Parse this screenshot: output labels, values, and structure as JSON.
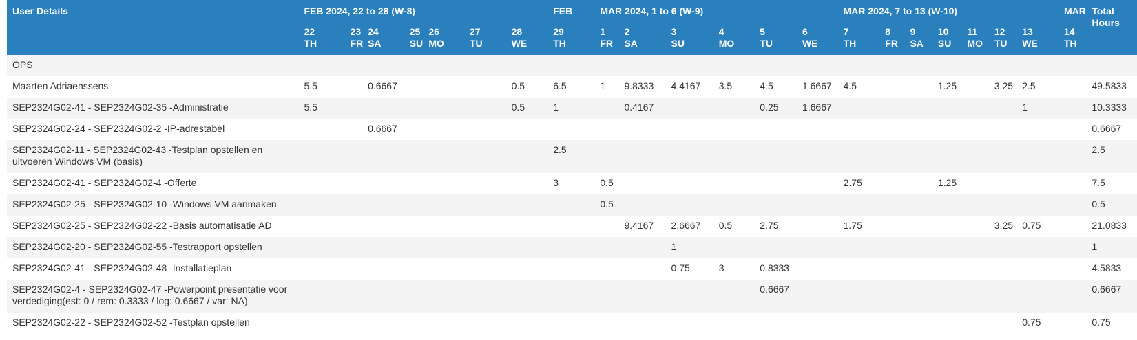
{
  "header": {
    "user_details": "User Details",
    "groups": {
      "w8": "FEB 2024, 22 to 28 (W-8)",
      "feb": "FEB",
      "w9": "MAR 2024, 1 to 6 (W-9)",
      "w10": "MAR 2024, 7 to 13 (W-10)",
      "mar": "MAR"
    },
    "total_line1": "Total",
    "total_line2": "Hours",
    "days": [
      {
        "num": "22",
        "wd": "TH"
      },
      {
        "num": "23",
        "wd": "FR"
      },
      {
        "num": "24",
        "wd": "SA"
      },
      {
        "num": "25",
        "wd": "SU"
      },
      {
        "num": "26",
        "wd": "MO"
      },
      {
        "num": "27",
        "wd": "TU"
      },
      {
        "num": "28",
        "wd": "WE"
      },
      {
        "num": "29",
        "wd": "TH"
      },
      {
        "num": "1",
        "wd": "FR"
      },
      {
        "num": "2",
        "wd": "SA"
      },
      {
        "num": "3",
        "wd": "SU"
      },
      {
        "num": "4",
        "wd": "MO"
      },
      {
        "num": "5",
        "wd": "TU"
      },
      {
        "num": "6",
        "wd": "WE"
      },
      {
        "num": "7",
        "wd": "TH"
      },
      {
        "num": "8",
        "wd": "FR"
      },
      {
        "num": "9",
        "wd": "SA"
      },
      {
        "num": "10",
        "wd": "SU"
      },
      {
        "num": "11",
        "wd": "MO"
      },
      {
        "num": "12",
        "wd": "TU"
      },
      {
        "num": "13",
        "wd": "WE"
      },
      {
        "num": "14",
        "wd": "TH"
      }
    ]
  },
  "rows": [
    {
      "label": "OPS",
      "cells": [
        "",
        "",
        "",
        "",
        "",
        "",
        "",
        "",
        "",
        "",
        "",
        "",
        "",
        "",
        "",
        "",
        "",
        "",
        "",
        "",
        "",
        ""
      ],
      "total": ""
    },
    {
      "label": "Maarten Adriaenssens",
      "cells": [
        "5.5",
        "",
        "0.6667",
        "",
        "",
        "",
        "0.5",
        "6.5",
        "1",
        "9.8333",
        "4.4167",
        "3.5",
        "4.5",
        "1.6667",
        "4.5",
        "",
        "",
        "1.25",
        "",
        "3.25",
        "2.5",
        ""
      ],
      "total": "49.5833"
    },
    {
      "label": "SEP2324G02-41 - SEP2324G02-35 -Administratie",
      "cells": [
        "5.5",
        "",
        "",
        "",
        "",
        "",
        "0.5",
        "1",
        "",
        "0.4167",
        "",
        "",
        "0.25",
        "1.6667",
        "",
        "",
        "",
        "",
        "",
        "",
        "1",
        ""
      ],
      "total": "10.3333"
    },
    {
      "label": "SEP2324G02-24 - SEP2324G02-2 -IP-adrestabel",
      "cells": [
        "",
        "",
        "0.6667",
        "",
        "",
        "",
        "",
        "",
        "",
        "",
        "",
        "",
        "",
        "",
        "",
        "",
        "",
        "",
        "",
        "",
        "",
        ""
      ],
      "total": "0.6667"
    },
    {
      "label": "SEP2324G02-11 - SEP2324G02-43 -Testplan opstellen en uitvoeren Windows VM (basis)",
      "cells": [
        "",
        "",
        "",
        "",
        "",
        "",
        "",
        "2.5",
        "",
        "",
        "",
        "",
        "",
        "",
        "",
        "",
        "",
        "",
        "",
        "",
        "",
        ""
      ],
      "total": "2.5"
    },
    {
      "label": "SEP2324G02-41 - SEP2324G02-4 -Offerte",
      "cells": [
        "",
        "",
        "",
        "",
        "",
        "",
        "",
        "3",
        "0.5",
        "",
        "",
        "",
        "",
        "",
        "2.75",
        "",
        "",
        "1.25",
        "",
        "",
        "",
        ""
      ],
      "total": "7.5"
    },
    {
      "label": "SEP2324G02-25 - SEP2324G02-10 -Windows VM aanmaken",
      "cells": [
        "",
        "",
        "",
        "",
        "",
        "",
        "",
        "",
        "0.5",
        "",
        "",
        "",
        "",
        "",
        "",
        "",
        "",
        "",
        "",
        "",
        "",
        ""
      ],
      "total": "0.5"
    },
    {
      "label": "SEP2324G02-25 - SEP2324G02-22 -Basis automatisatie AD",
      "cells": [
        "",
        "",
        "",
        "",
        "",
        "",
        "",
        "",
        "",
        "9.4167",
        "2.6667",
        "0.5",
        "2.75",
        "",
        "1.75",
        "",
        "",
        "",
        "",
        "3.25",
        "0.75",
        ""
      ],
      "total": "21.0833"
    },
    {
      "label": "SEP2324G02-20 - SEP2324G02-55 -Testrapport opstellen",
      "cells": [
        "",
        "",
        "",
        "",
        "",
        "",
        "",
        "",
        "",
        "",
        "1",
        "",
        "",
        "",
        "",
        "",
        "",
        "",
        "",
        "",
        "",
        ""
      ],
      "total": "1"
    },
    {
      "label": "SEP2324G02-41 - SEP2324G02-48 -Installatieplan",
      "cells": [
        "",
        "",
        "",
        "",
        "",
        "",
        "",
        "",
        "",
        "",
        "0.75",
        "3",
        "0.8333",
        "",
        "",
        "",
        "",
        "",
        "",
        "",
        "",
        ""
      ],
      "total": "4.5833"
    },
    {
      "label": "SEP2324G02-4 - SEP2324G02-47 -Powerpoint presentatie voor verdediging(est: 0 / rem: 0.3333 / log: 0.6667 / var: NA)",
      "cells": [
        "",
        "",
        "",
        "",
        "",
        "",
        "",
        "",
        "",
        "",
        "",
        "",
        "0.6667",
        "",
        "",
        "",
        "",
        "",
        "",
        "",
        "",
        ""
      ],
      "total": "0.6667"
    },
    {
      "label": "SEP2324G02-22 - SEP2324G02-52 -Testplan opstellen",
      "cells": [
        "",
        "",
        "",
        "",
        "",
        "",
        "",
        "",
        "",
        "",
        "",
        "",
        "",
        "",
        "",
        "",
        "",
        "",
        "",
        "",
        "0.75",
        ""
      ],
      "total": "0.75"
    }
  ]
}
